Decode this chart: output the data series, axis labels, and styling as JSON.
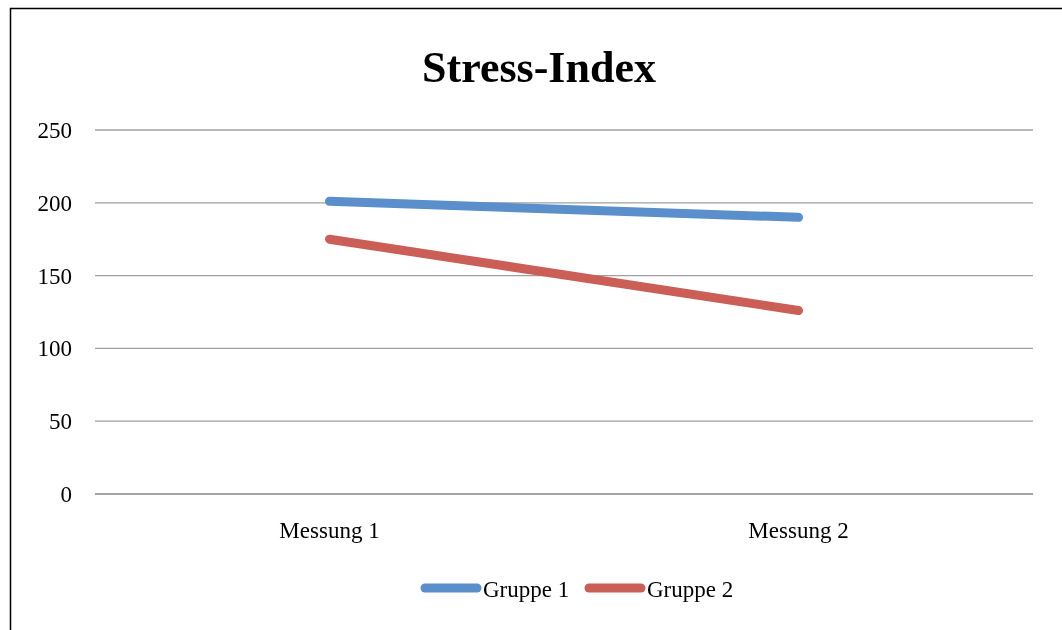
{
  "chart_data": {
    "type": "line",
    "title": "Stress-Index",
    "categories": [
      "Messung 1",
      "Messung 2"
    ],
    "series": [
      {
        "name": "Gruppe 1",
        "color": "#5b8fcb",
        "values": [
          201,
          190
        ]
      },
      {
        "name": "Gruppe 2",
        "color": "#cb5e56",
        "values": [
          175,
          126
        ]
      }
    ],
    "ylim": [
      0,
      250
    ],
    "yticks": [
      0,
      50,
      100,
      150,
      200,
      250
    ],
    "grid": "y",
    "legend": "bottom",
    "marker": "none",
    "line_style": "solid"
  }
}
